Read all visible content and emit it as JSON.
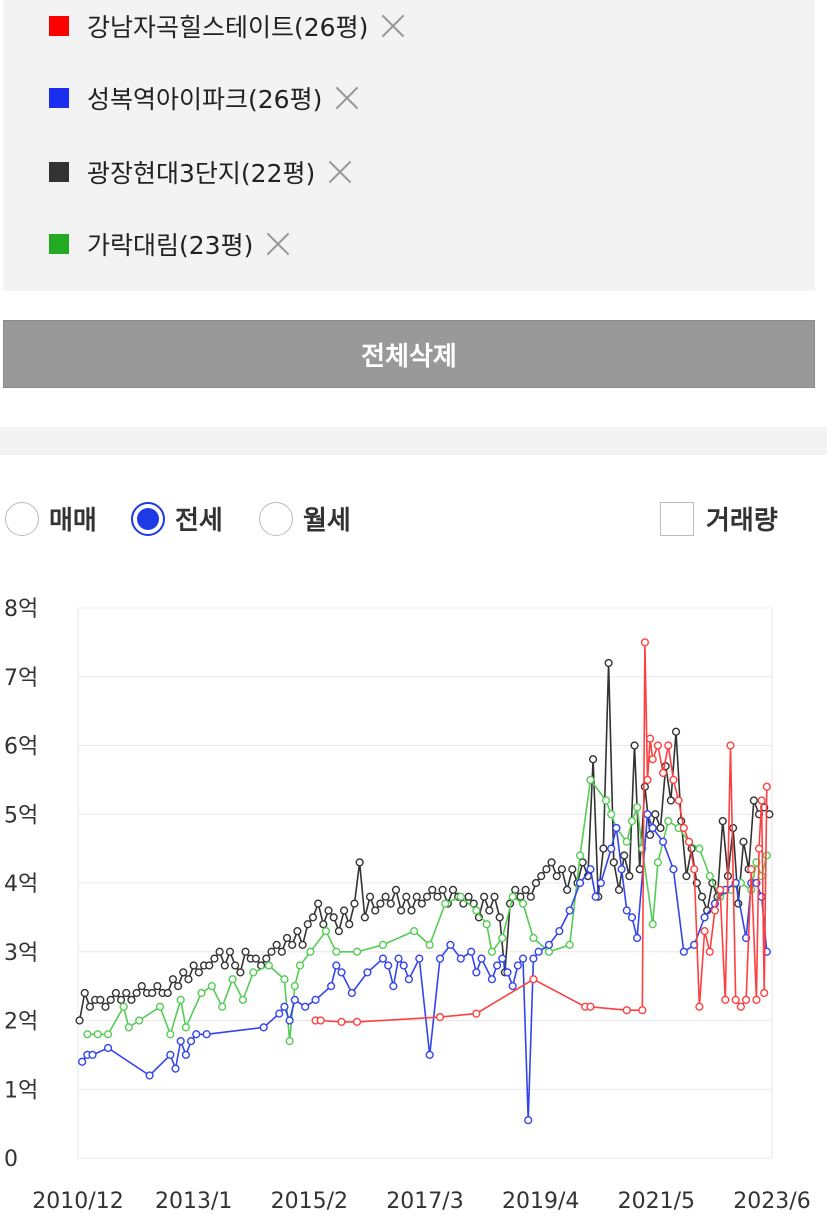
{
  "legend": {
    "items": [
      {
        "label": "강남자곡힐스테이트(26평)",
        "color": "#ff0000"
      },
      {
        "label": "성복역아이파크(26평)",
        "color": "#1a2ef0"
      },
      {
        "label": "광장현대3단지(22평)",
        "color": "#333333"
      },
      {
        "label": "가락대림(23평)",
        "color": "#22aa22"
      }
    ]
  },
  "clear_button": "전체삭제",
  "radios": [
    {
      "label": "매매",
      "selected": false
    },
    {
      "label": "전세",
      "selected": true
    },
    {
      "label": "월세",
      "selected": false
    }
  ],
  "volume_checkbox": {
    "label": "거래량",
    "checked": false
  },
  "chart_data": {
    "type": "line",
    "ylim": [
      0,
      8
    ],
    "yticks": [
      "0",
      "1억",
      "2억",
      "3억",
      "4억",
      "5억",
      "6억",
      "7억",
      "8억"
    ],
    "xticks": [
      "2010/12",
      "2013/1",
      "2015/2",
      "2017/3",
      "2019/4",
      "2021/5",
      "2023/6"
    ],
    "xrange": [
      2010.92,
      2024.3
    ],
    "series": [
      {
        "name": "강남자곡힐스테이트(26평)",
        "color": "#ff4040",
        "x": [
          2015.5,
          2015.6,
          2016.0,
          2016.3,
          2017.9,
          2018.6,
          2019.7,
          2020.7,
          2020.8,
          2021.5,
          2021.8,
          2021.85,
          2021.9,
          2021.95,
          2022.0,
          2022.1,
          2022.2,
          2022.3,
          2022.4,
          2022.5,
          2022.6,
          2022.7,
          2022.8,
          2022.9,
          2023.0,
          2023.1,
          2023.2,
          2023.3,
          2023.4,
          2023.5,
          2023.6,
          2023.7,
          2023.8,
          2023.9,
          2024.0,
          2024.05,
          2024.1,
          2024.15,
          2024.2
        ],
        "values": [
          2.0,
          2.0,
          1.98,
          1.98,
          2.05,
          2.1,
          2.6,
          2.2,
          2.2,
          2.15,
          2.15,
          7.5,
          5.5,
          6.1,
          5.8,
          6.0,
          5.6,
          6.0,
          5.5,
          5.2,
          4.8,
          4.6,
          4.2,
          2.2,
          3.3,
          3.0,
          3.6,
          3.9,
          2.3,
          6.0,
          2.3,
          2.2,
          2.3,
          4.2,
          2.3,
          4.5,
          5.2,
          2.4,
          5.4
        ]
      },
      {
        "name": "성복역아이파크(26평)",
        "color": "#3344ee",
        "x": [
          2011.0,
          2011.1,
          2011.2,
          2011.5,
          2012.3,
          2012.7,
          2012.8,
          2012.9,
          2013.0,
          2013.1,
          2013.2,
          2013.4,
          2014.5,
          2014.8,
          2014.9,
          2015.0,
          2015.1,
          2015.3,
          2015.5,
          2015.8,
          2015.9,
          2016.0,
          2016.2,
          2016.5,
          2016.8,
          2016.9,
          2017.0,
          2017.1,
          2017.2,
          2017.3,
          2017.5,
          2017.7,
          2017.9,
          2018.1,
          2018.3,
          2018.5,
          2018.6,
          2018.7,
          2018.9,
          2019.0,
          2019.1,
          2019.2,
          2019.3,
          2019.4,
          2019.5,
          2019.6,
          2019.7,
          2019.8,
          2020.0,
          2020.2,
          2020.4,
          2020.6,
          2020.8,
          2020.9,
          2021.0,
          2021.2,
          2021.3,
          2021.4,
          2021.5,
          2021.6,
          2021.7,
          2021.9,
          2022.0,
          2022.2,
          2022.4,
          2022.6,
          2022.8,
          2023.0,
          2023.2,
          2023.4,
          2023.6,
          2023.8,
          2023.9,
          2024.0,
          2024.1,
          2024.2
        ],
        "values": [
          1.4,
          1.5,
          1.5,
          1.6,
          1.2,
          1.5,
          1.3,
          1.7,
          1.5,
          1.7,
          1.8,
          1.8,
          1.9,
          2.1,
          2.2,
          2.0,
          2.3,
          2.2,
          2.3,
          2.5,
          2.8,
          2.7,
          2.4,
          2.7,
          2.9,
          2.8,
          2.5,
          2.9,
          2.8,
          2.6,
          2.9,
          1.5,
          2.9,
          3.1,
          2.9,
          3.0,
          2.7,
          2.9,
          2.6,
          2.8,
          2.9,
          2.7,
          2.5,
          2.8,
          2.9,
          0.55,
          2.9,
          3.0,
          3.1,
          3.3,
          3.6,
          4.0,
          4.2,
          3.8,
          4.0,
          4.5,
          4.8,
          4.2,
          3.6,
          3.5,
          3.2,
          5.0,
          4.8,
          4.6,
          4.2,
          3.0,
          3.1,
          3.5,
          3.7,
          3.9,
          4.0,
          3.2,
          4.0,
          4.0,
          3.8,
          3.0
        ]
      },
      {
        "name": "광장현대3단지(22평)",
        "color": "#333333",
        "x": [
          2010.95,
          2011.05,
          2011.15,
          2011.25,
          2011.35,
          2011.45,
          2011.55,
          2011.65,
          2011.75,
          2011.85,
          2011.95,
          2012.05,
          2012.15,
          2012.25,
          2012.35,
          2012.45,
          2012.55,
          2012.65,
          2012.75,
          2012.85,
          2012.95,
          2013.05,
          2013.15,
          2013.25,
          2013.35,
          2013.45,
          2013.55,
          2013.65,
          2013.75,
          2013.85,
          2013.95,
          2014.05,
          2014.15,
          2014.25,
          2014.35,
          2014.45,
          2014.55,
          2014.65,
          2014.75,
          2014.85,
          2014.95,
          2015.05,
          2015.15,
          2015.25,
          2015.35,
          2015.45,
          2015.55,
          2015.65,
          2015.75,
          2015.85,
          2015.95,
          2016.05,
          2016.15,
          2016.25,
          2016.35,
          2016.45,
          2016.55,
          2016.65,
          2016.75,
          2016.85,
          2016.95,
          2017.05,
          2017.15,
          2017.25,
          2017.35,
          2017.45,
          2017.55,
          2017.65,
          2017.75,
          2017.85,
          2017.95,
          2018.05,
          2018.15,
          2018.25,
          2018.35,
          2018.45,
          2018.55,
          2018.65,
          2018.75,
          2018.85,
          2018.95,
          2019.05,
          2019.15,
          2019.25,
          2019.35,
          2019.45,
          2019.55,
          2019.65,
          2019.75,
          2019.85,
          2019.95,
          2020.05,
          2020.15,
          2020.25,
          2020.35,
          2020.45,
          2020.55,
          2020.65,
          2020.75,
          2020.85,
          2020.95,
          2021.05,
          2021.15,
          2021.25,
          2021.35,
          2021.45,
          2021.55,
          2021.65,
          2021.75,
          2021.85,
          2021.95,
          2022.05,
          2022.15,
          2022.25,
          2022.35,
          2022.45,
          2022.55,
          2022.65,
          2022.75,
          2022.85,
          2022.95,
          2023.05,
          2023.15,
          2023.25,
          2023.35,
          2023.45,
          2023.55,
          2023.65,
          2023.75,
          2023.85,
          2023.95,
          2024.05,
          2024.15,
          2024.25
        ],
        "values": [
          2.0,
          2.4,
          2.2,
          2.3,
          2.3,
          2.2,
          2.3,
          2.4,
          2.3,
          2.4,
          2.3,
          2.4,
          2.5,
          2.4,
          2.4,
          2.5,
          2.4,
          2.4,
          2.6,
          2.5,
          2.7,
          2.6,
          2.8,
          2.7,
          2.8,
          2.8,
          2.9,
          3.0,
          2.8,
          3.0,
          2.8,
          2.7,
          3.0,
          2.9,
          2.9,
          2.8,
          2.9,
          3.0,
          3.1,
          3.0,
          3.2,
          3.1,
          3.3,
          3.1,
          3.4,
          3.5,
          3.7,
          3.4,
          3.6,
          3.5,
          3.3,
          3.6,
          3.4,
          3.7,
          4.3,
          3.5,
          3.8,
          3.6,
          3.7,
          3.8,
          3.7,
          3.9,
          3.6,
          3.8,
          3.6,
          3.8,
          3.7,
          3.8,
          3.9,
          3.8,
          3.9,
          3.7,
          3.9,
          3.8,
          3.7,
          3.8,
          3.7,
          3.5,
          3.8,
          3.6,
          3.8,
          3.5,
          2.7,
          3.7,
          3.9,
          3.8,
          3.9,
          3.8,
          4.0,
          4.1,
          4.2,
          4.3,
          4.1,
          4.2,
          3.9,
          4.2,
          4.0,
          4.3,
          4.1,
          5.8,
          3.8,
          4.5,
          7.2,
          4.3,
          3.9,
          4.4,
          4.1,
          6.0,
          4.2,
          5.4,
          4.7,
          5.0,
          4.8,
          5.7,
          5.2,
          6.2,
          4.9,
          4.1,
          4.5,
          4.0,
          3.8,
          3.6,
          4.0,
          3.8,
          4.9,
          4.1,
          4.8,
          3.7,
          4.6,
          4.2,
          5.2,
          5.0,
          5.1,
          5.0
        ]
      },
      {
        "name": "가락대림(23평)",
        "color": "#55cc55",
        "x": [
          2011.1,
          2011.3,
          2011.5,
          2011.8,
          2011.9,
          2012.1,
          2012.5,
          2012.7,
          2012.9,
          2013.0,
          2013.3,
          2013.5,
          2013.7,
          2013.9,
          2014.1,
          2014.3,
          2014.6,
          2014.9,
          2015.0,
          2015.1,
          2015.2,
          2015.4,
          2015.7,
          2015.9,
          2016.3,
          2016.8,
          2017.4,
          2017.7,
          2018.0,
          2018.3,
          2018.6,
          2018.8,
          2018.9,
          2019.1,
          2019.3,
          2019.5,
          2019.7,
          2020.0,
          2020.4,
          2020.6,
          2020.8,
          2021.1,
          2021.2,
          2021.3,
          2021.5,
          2021.6,
          2021.7,
          2021.8,
          2022.0,
          2022.1,
          2022.3,
          2022.5,
          2022.7,
          2022.9,
          2023.1,
          2023.3,
          2023.5,
          2023.7,
          2023.9,
          2024.0,
          2024.1,
          2024.2
        ],
        "values": [
          1.8,
          1.8,
          1.8,
          2.2,
          1.9,
          2.0,
          2.2,
          1.8,
          2.3,
          1.9,
          2.4,
          2.5,
          2.2,
          2.6,
          2.3,
          2.7,
          2.8,
          2.6,
          1.7,
          2.5,
          2.8,
          3.0,
          3.3,
          3.0,
          3.0,
          3.1,
          3.3,
          3.1,
          3.7,
          3.8,
          3.6,
          3.4,
          3.0,
          3.2,
          3.8,
          3.7,
          3.2,
          3.0,
          3.1,
          4.4,
          5.5,
          5.2,
          5.0,
          4.8,
          4.6,
          4.9,
          5.1,
          4.5,
          3.4,
          4.3,
          4.9,
          4.8,
          4.6,
          4.5,
          4.1,
          3.8,
          3.9,
          4.0,
          3.9,
          4.3,
          4.1,
          4.4
        ]
      }
    ]
  }
}
